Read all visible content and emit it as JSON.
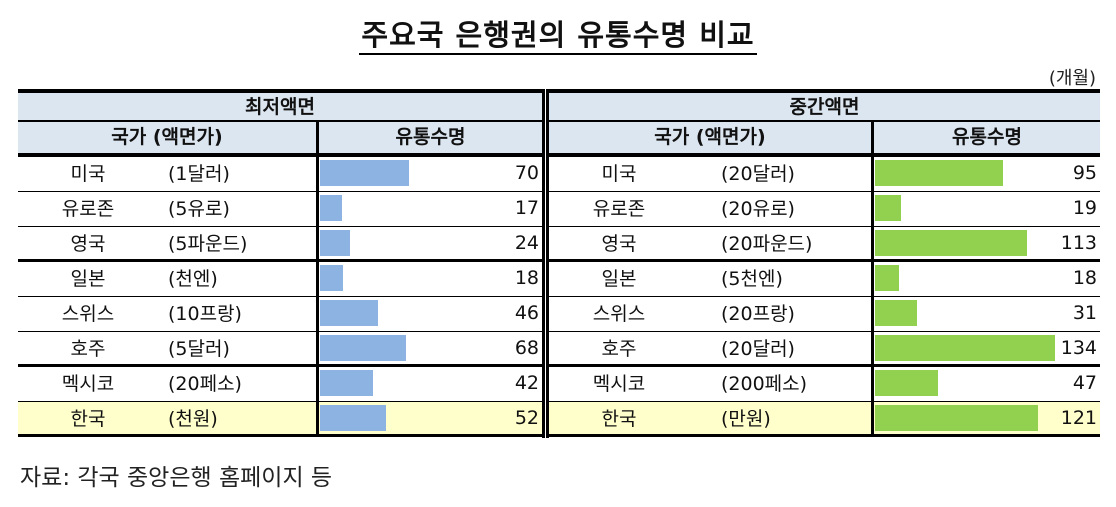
{
  "title": "주요국 은행권의 유통수명 비교",
  "unit": "(개월)",
  "source": "자료: 각국 중앙은행 홈페이지 등",
  "colors": {
    "header_bg": "#dce6f1",
    "highlight_bg": "#ffffcc",
    "bar_low": "#8db3e2",
    "bar_mid": "#92d050"
  },
  "tables": {
    "low": {
      "header": "최저액면",
      "col_country": "국가 (액면가)",
      "col_value": "유통수명",
      "rows": [
        {
          "country": "미국",
          "denom": "(1달러)",
          "value": "70"
        },
        {
          "country": "유로존",
          "denom": "(5유로)",
          "value": "17"
        },
        {
          "country": "영국",
          "denom": "(5파운드)",
          "value": "24"
        },
        {
          "country": "일본",
          "denom": "(천엔)",
          "value": "18"
        },
        {
          "country": "스위스",
          "denom": "(10프랑)",
          "value": "46"
        },
        {
          "country": "호주",
          "denom": "(5달러)",
          "value": "68"
        },
        {
          "country": "멕시코",
          "denom": "(20페소)",
          "value": "42"
        },
        {
          "country": "한국",
          "denom": "(천원)",
          "value": "52"
        }
      ]
    },
    "mid": {
      "header": "중간액면",
      "col_country": "국가 (액면가)",
      "col_value": "유통수명",
      "rows": [
        {
          "country": "미국",
          "denom": "(20달러)",
          "value": "95"
        },
        {
          "country": "유로존",
          "denom": "(20유로)",
          "value": "19"
        },
        {
          "country": "영국",
          "denom": "(20파운드)",
          "value": "113"
        },
        {
          "country": "일본",
          "denom": "(5천엔)",
          "value": "18"
        },
        {
          "country": "스위스",
          "denom": "(20프랑)",
          "value": "31"
        },
        {
          "country": "호주",
          "denom": "(20달러)",
          "value": "134"
        },
        {
          "country": "멕시코",
          "denom": "(200페소)",
          "value": "47"
        },
        {
          "country": "한국",
          "denom": "(만원)",
          "value": "121"
        }
      ]
    }
  },
  "chart_data": [
    {
      "type": "bar",
      "title": "주요국 은행권의 유통수명 비교 - 최저액면",
      "xlabel": "국가 (액면가)",
      "ylabel": "유통수명 (개월)",
      "categories": [
        "미국 (1달러)",
        "유로존 (5유로)",
        "영국 (5파운드)",
        "일본 (천엔)",
        "스위스 (10프랑)",
        "호주 (5달러)",
        "멕시코 (20페소)",
        "한국 (천원)"
      ],
      "values": [
        70,
        17,
        24,
        18,
        46,
        68,
        42,
        52
      ],
      "orientation": "horizontal-databar",
      "color": "#8db3e2"
    },
    {
      "type": "bar",
      "title": "주요국 은행권의 유통수명 비교 - 중간액면",
      "xlabel": "국가 (액면가)",
      "ylabel": "유통수명 (개월)",
      "categories": [
        "미국 (20달러)",
        "유로존 (20유로)",
        "영국 (20파운드)",
        "일본 (5천엔)",
        "스위스 (20프랑)",
        "호주 (20달러)",
        "멕시코 (200페소)",
        "한국 (만원)"
      ],
      "values": [
        95,
        19,
        113,
        18,
        31,
        134,
        47,
        121
      ],
      "orientation": "horizontal-databar",
      "color": "#92d050"
    }
  ]
}
